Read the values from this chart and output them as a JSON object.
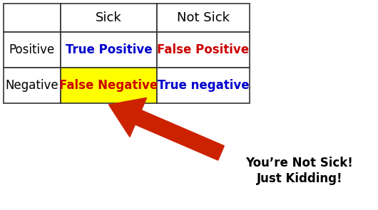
{
  "background_color": "#ffffff",
  "table": {
    "col_headers": [
      "",
      "Sick",
      "Not Sick"
    ],
    "row_headers": [
      "",
      "Positive",
      "Negative"
    ],
    "cells": [
      [
        "True Positive",
        "False Positive"
      ],
      [
        "False Negative",
        "True negative"
      ]
    ],
    "cell_colors": [
      [
        "#ffffff",
        "#ffffff"
      ],
      [
        "#ffff00",
        "#ffffff"
      ]
    ],
    "cell_text_colors": [
      [
        "#0000cc",
        "#cc0000"
      ],
      [
        "#cc0000",
        "#0000cc"
      ]
    ]
  },
  "annotation": {
    "text": "You’re Not Sick!\nJust Kidding!",
    "fontsize": 12,
    "fontweight": "bold",
    "color": "#000000"
  },
  "arrow_color": "#cc2200"
}
